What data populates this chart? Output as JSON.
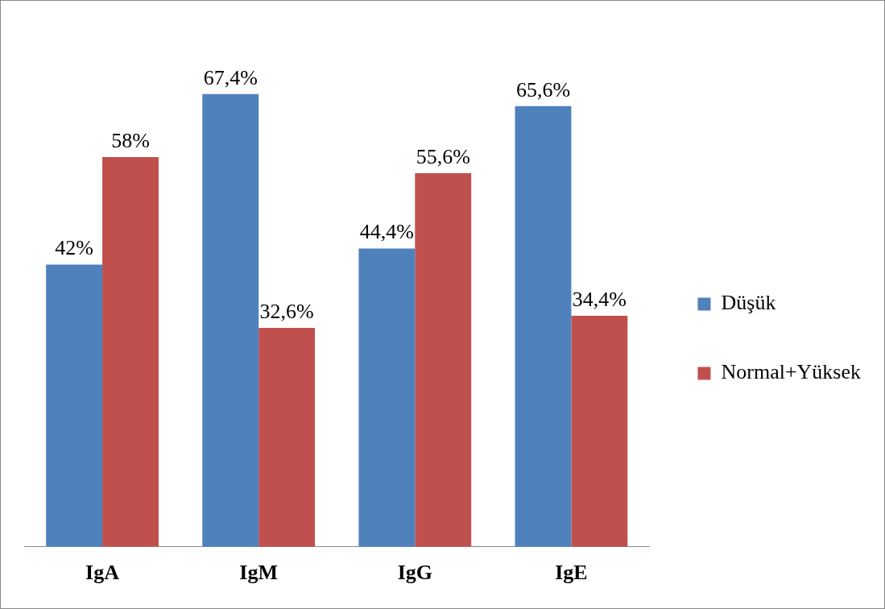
{
  "chart_data": {
    "type": "bar",
    "categories": [
      "IgA",
      "IgM",
      "IgG",
      "IgE"
    ],
    "series": [
      {
        "name": "Düşük",
        "color": "#4f81bd",
        "values": [
          42,
          67.4,
          44.4,
          65.6
        ],
        "value_labels": [
          "42%",
          "67,4%",
          "44,4%",
          "65,6%"
        ]
      },
      {
        "name": "Normal+Yüksek",
        "color": "#c0504d",
        "values": [
          58,
          32.6,
          55.6,
          34.4
        ],
        "value_labels": [
          "58%",
          "32,6%",
          "55,6%",
          "34,4%"
        ]
      }
    ],
    "legend": "right",
    "grid": false
  }
}
